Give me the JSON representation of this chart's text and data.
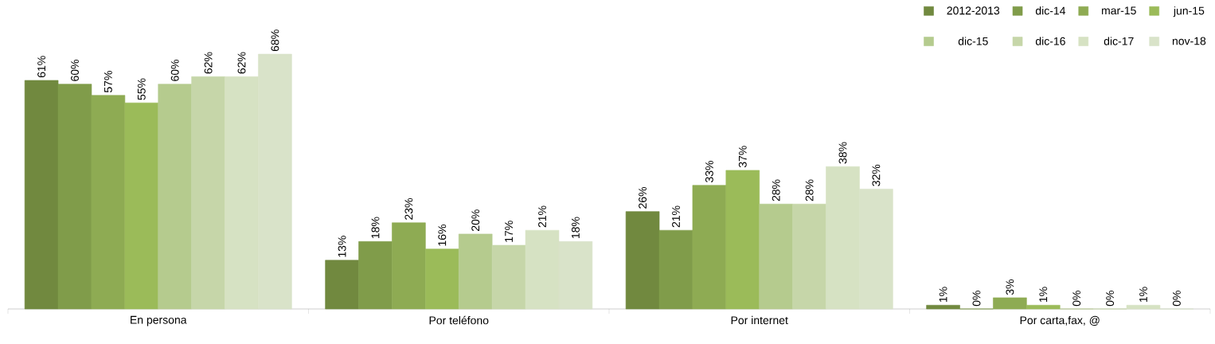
{
  "chart_data": {
    "type": "bar",
    "legend": "top right",
    "categories": [
      "En persona",
      "Por teléfono",
      "Por internet",
      "Por carta,fax, @"
    ],
    "series": [
      {
        "name": "2012-2013",
        "color": "#71893f",
        "values": [
          61,
          13,
          26,
          1
        ],
        "value_labels": [
          "61%",
          "13%",
          "26%",
          "1%"
        ]
      },
      {
        "name": "dic-14",
        "color": "#809c4a",
        "values": [
          60,
          18,
          21,
          0
        ],
        "value_labels": [
          "60%",
          "18%",
          "21%",
          "0%"
        ]
      },
      {
        "name": "mar-15",
        "color": "#8eab53",
        "values": [
          57,
          23,
          33,
          3
        ],
        "value_labels": [
          "57%",
          "23%",
          "33%",
          "3%"
        ]
      },
      {
        "name": "jun-15",
        "color": "#9bbb59",
        "values": [
          55,
          16,
          37,
          1
        ],
        "value_labels": [
          "55%",
          "16%",
          "37%",
          "1%"
        ]
      },
      {
        "name": "dic-15",
        "color": "#b5cb8e",
        "values": [
          60,
          20,
          28,
          0
        ],
        "value_labels": [
          "60%",
          "20%",
          "28%",
          "0%"
        ]
      },
      {
        "name": "dic-16",
        "color": "#c6d6a9",
        "values": [
          62,
          17,
          28,
          0
        ],
        "value_labels": [
          "62%",
          "17%",
          "28%",
          "0%"
        ]
      },
      {
        "name": "dic-17",
        "color": "#d6e2c3",
        "values": [
          62,
          21,
          38,
          1
        ],
        "value_labels": [
          "62%",
          "21%",
          "38%",
          "1%"
        ]
      },
      {
        "name": "nov-18",
        "color": "#d9e3c9",
        "values": [
          68,
          18,
          32,
          0
        ],
        "value_labels": [
          "68%",
          "18%",
          "32%",
          "0%"
        ]
      }
    ]
  }
}
